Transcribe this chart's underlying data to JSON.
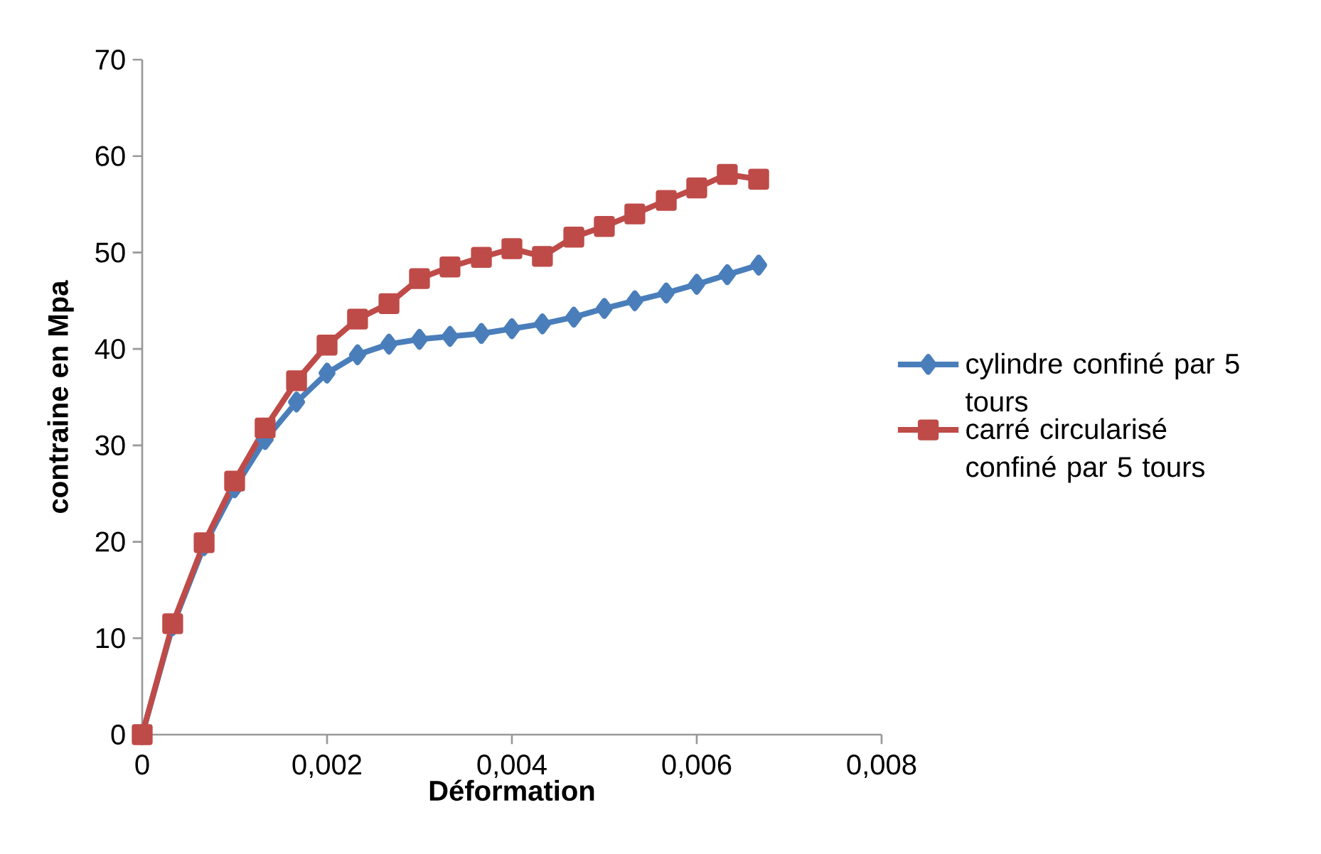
{
  "chart_data": {
    "type": "line",
    "xlabel": "Déformation",
    "ylabel": "contraine en Mpa",
    "x": [
      0,
      0.00033,
      0.00067,
      0.001,
      0.00133,
      0.00167,
      0.002,
      0.00233,
      0.00267,
      0.003,
      0.00333,
      0.00367,
      0.004,
      0.00433,
      0.00467,
      0.005,
      0.00533,
      0.00567,
      0.006,
      0.00633,
      0.00667
    ],
    "series": [
      {
        "name": "cylindre confiné par 5 tours",
        "color": "#4a7ebb",
        "marker": "diamond",
        "values": [
          0,
          11.3,
          19.6,
          25.6,
          30.6,
          34.5,
          37.5,
          39.4,
          40.5,
          41.0,
          41.3,
          41.6,
          42.1,
          42.6,
          43.3,
          44.2,
          45.0,
          45.8,
          46.7,
          47.7,
          48.7
        ]
      },
      {
        "name": "carré circularisé confiné par 5 tours",
        "color": "#be4b48",
        "marker": "square",
        "values": [
          0,
          11.5,
          19.9,
          26.3,
          31.8,
          36.7,
          40.4,
          43.1,
          44.7,
          47.3,
          48.5,
          49.5,
          50.4,
          49.6,
          51.6,
          52.7,
          54.0,
          55.4,
          56.7,
          58.1,
          57.6
        ]
      }
    ],
    "xlim": [
      0,
      0.008
    ],
    "ylim": [
      0,
      70
    ],
    "xticks": [
      0,
      {
        "value": 0.002,
        "label": "0,002"
      },
      {
        "value": 0.004,
        "label": "0,004"
      },
      {
        "value": 0.006,
        "label": "0,006"
      },
      {
        "value": 0.008,
        "label": "0,008"
      }
    ],
    "yticks": [
      0,
      10,
      20,
      30,
      40,
      50,
      60,
      70
    ],
    "grid": false,
    "legend": "right",
    "line_style": "solid"
  }
}
